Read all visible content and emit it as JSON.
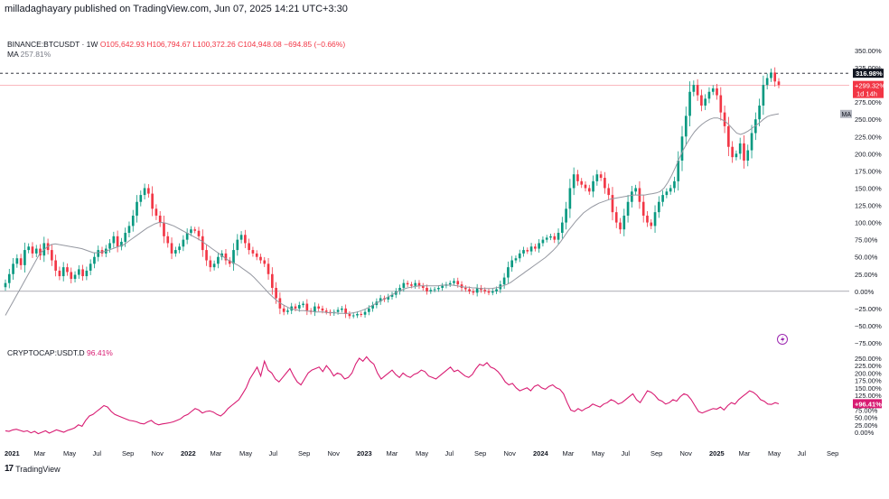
{
  "header": {
    "text": "milladaghayary published on TradingView.com, Jun 07, 2025 14:21 UTC+3:30"
  },
  "legend_main": {
    "symbol": "BINANCE:BTCUSDT · 1W",
    "o": "O105,642.93",
    "h": "H106,794.67",
    "l": "L100,372.26",
    "c": "C104,948.08",
    "chg": "−694.85 (−0.66%)",
    "ma_label": "MA",
    "ma_value": "257.81%"
  },
  "legend_sub": {
    "symbol": "CRYPTOCAP:USDT.D",
    "value": "96.41%"
  },
  "price_badges": {
    "high_line": "316.98%",
    "last": "+299.32%",
    "countdown": "1d 14h",
    "ma_tag": "MA",
    "sub_last": "+96.41%"
  },
  "footer": {
    "brand": "TradingView",
    "icon": "tv-logo-icon"
  },
  "colors": {
    "up": "#089981",
    "down": "#f23645",
    "ma": "#9598a1",
    "sub": "#d81b72",
    "zero": "#787b86"
  },
  "chart_data": [
    {
      "type": "candlestick",
      "title": "BINANCE:BTCUSDT · 1W",
      "scale": "percent",
      "ylim": [
        -75,
        350
      ],
      "yticks": [
        "350.00%",
        "325.00%",
        "300.00%",
        "275.00%",
        "250.00%",
        "225.00%",
        "200.00%",
        "175.00%",
        "150.00%",
        "125.00%",
        "100.00%",
        "75.00%",
        "50.00%",
        "25.00%",
        "0.00%",
        "−25.00%",
        "−50.00%",
        "−75.00%"
      ],
      "x_labels": [
        "2021",
        "Mar",
        "May",
        "Jul",
        "Sep",
        "Nov",
        "2022",
        "Mar",
        "May",
        "Jul",
        "Sep",
        "Nov",
        "2023",
        "Mar",
        "May",
        "Jul",
        "Sep",
        "Nov",
        "2024",
        "Mar",
        "May",
        "Jul",
        "Sep",
        "Nov",
        "2025",
        "Mar",
        "May",
        "Jul",
        "Sep"
      ],
      "reference_lines": [
        {
          "label": "high",
          "value": 316.98,
          "style": "dashed"
        },
        {
          "label": "last",
          "value": 299.32,
          "style": "solid"
        },
        {
          "label": "base",
          "value": 0,
          "style": "solid"
        }
      ],
      "closes": [
        12,
        25,
        40,
        48,
        38,
        60,
        65,
        55,
        62,
        52,
        70,
        60,
        45,
        30,
        22,
        35,
        28,
        18,
        24,
        32,
        22,
        30,
        40,
        50,
        60,
        55,
        62,
        70,
        80,
        65,
        72,
        85,
        95,
        110,
        130,
        140,
        150,
        142,
        120,
        110,
        100,
        80,
        70,
        55,
        60,
        65,
        75,
        85,
        90,
        88,
        80,
        60,
        45,
        35,
        40,
        50,
        55,
        45,
        40,
        60,
        75,
        82,
        70,
        60,
        55,
        50,
        45,
        40,
        25,
        5,
        -10,
        -25,
        -30,
        -28,
        -22,
        -25,
        -20,
        -18,
        -28,
        -30,
        -22,
        -25,
        -28,
        -30,
        -32,
        -30,
        -27,
        -25,
        -33,
        -36,
        -35,
        -33,
        -34,
        -30,
        -25,
        -20,
        -15,
        -10,
        -12,
        -8,
        -5,
        0,
        5,
        12,
        10,
        8,
        12,
        8,
        5,
        0,
        2,
        3,
        5,
        8,
        10,
        12,
        15,
        10,
        5,
        3,
        0,
        -2,
        5,
        2,
        0,
        -2,
        0,
        3,
        10,
        20,
        35,
        45,
        48,
        55,
        60,
        58,
        65,
        62,
        70,
        75,
        78,
        80,
        75,
        85,
        100,
        120,
        150,
        170,
        160,
        155,
        150,
        145,
        160,
        170,
        165,
        150,
        140,
        115,
        100,
        90,
        110,
        130,
        145,
        150,
        130,
        110,
        100,
        95,
        115,
        130,
        140,
        145,
        150,
        160,
        190,
        225,
        255,
        290,
        300,
        285,
        270,
        280,
        290,
        295,
        285,
        260,
        240,
        210,
        195,
        200,
        215,
        190,
        205,
        230,
        250,
        270,
        300,
        310,
        318,
        305,
        300
      ],
      "ma": {
        "label": "MA",
        "value": "257.81%",
        "points": [
          -35,
          -25,
          -15,
          -5,
          5,
          15,
          25,
          35,
          45,
          55,
          60,
          65,
          68,
          69,
          68,
          67,
          66,
          65,
          64,
          63,
          62,
          60,
          58,
          56,
          56,
          57,
          58,
          60,
          62,
          64,
          66,
          68,
          72,
          76,
          80,
          84,
          88,
          92,
          95,
          98,
          100,
          100,
          99,
          97,
          95,
          92,
          89,
          86,
          83,
          80,
          77,
          74,
          70,
          66,
          62,
          58,
          54,
          50,
          46,
          43,
          40,
          37,
          33,
          29,
          25,
          20,
          14,
          8,
          2,
          -4,
          -9,
          -14,
          -18,
          -21,
          -24,
          -26,
          -27,
          -28,
          -28,
          -29,
          -29,
          -30,
          -30,
          -30,
          -31,
          -31,
          -31,
          -32,
          -32,
          -32,
          -32,
          -31,
          -30,
          -28,
          -26,
          -23,
          -20,
          -17,
          -14,
          -11,
          -8,
          -5,
          -2,
          1,
          3,
          5,
          6,
          7,
          8,
          8,
          8,
          8,
          8,
          8,
          9,
          9,
          9,
          9,
          8,
          7,
          6,
          6,
          5,
          5,
          4,
          4,
          4,
          4,
          5,
          6,
          8,
          10,
          13,
          17,
          21,
          25,
          29,
          33,
          37,
          41,
          45,
          49,
          54,
          59,
          65,
          72,
          80,
          88,
          95,
          102,
          108,
          114,
          118,
          122,
          125,
          128,
          130,
          132,
          134,
          135,
          136,
          137,
          138,
          139,
          140,
          140,
          140,
          140,
          141,
          142,
          143,
          145,
          150,
          158,
          168,
          180,
          193,
          205,
          215,
          224,
          232,
          238,
          243,
          247,
          250,
          252,
          252,
          250,
          247,
          242,
          236,
          230,
          228,
          230,
          233,
          237,
          241,
          245,
          250,
          254,
          256,
          257,
          258
        ]
      }
    },
    {
      "type": "line",
      "title": "CRYPTOCAP:USDT.D",
      "scale": "percent",
      "ylim": [
        -10,
        260
      ],
      "yticks": [
        "250.00%",
        "225.00%",
        "200.00%",
        "175.00%",
        "150.00%",
        "125.00%",
        "100.00%",
        "75.00%",
        "50.00%",
        "25.00%",
        "0.00%"
      ],
      "series": [
        {
          "name": "CRYPTOCAP:USDT.D",
          "values": [
            5,
            3,
            8,
            10,
            6,
            2,
            5,
            -2,
            3,
            -5,
            0,
            5,
            -3,
            2,
            8,
            4,
            0,
            6,
            10,
            15,
            25,
            20,
            40,
            55,
            60,
            70,
            80,
            90,
            85,
            70,
            60,
            55,
            50,
            45,
            40,
            38,
            35,
            30,
            28,
            35,
            40,
            30,
            25,
            28,
            30,
            32,
            35,
            40,
            45,
            55,
            60,
            70,
            80,
            75,
            65,
            70,
            72,
            68,
            60,
            55,
            65,
            80,
            90,
            100,
            110,
            130,
            150,
            180,
            200,
            220,
            190,
            240,
            210,
            200,
            180,
            170,
            185,
            200,
            215,
            190,
            170,
            160,
            180,
            200,
            210,
            215,
            220,
            205,
            225,
            210,
            190,
            200,
            195,
            180,
            185,
            200,
            230,
            250,
            240,
            255,
            240,
            230,
            200,
            180,
            190,
            200,
            210,
            195,
            185,
            200,
            190,
            185,
            195,
            200,
            210,
            205,
            190,
            185,
            180,
            190,
            200,
            210,
            220,
            205,
            210,
            200,
            190,
            185,
            195,
            215,
            230,
            225,
            235,
            220,
            215,
            205,
            190,
            170,
            160,
            165,
            150,
            140,
            145,
            150,
            140,
            155,
            160,
            150,
            145,
            155,
            160,
            150,
            145,
            130,
            100,
            75,
            70,
            80,
            72,
            80,
            85,
            95,
            90,
            85,
            95,
            100,
            110,
            105,
            95,
            100,
            110,
            120,
            130,
            110,
            100,
            120,
            140,
            135,
            125,
            110,
            105,
            95,
            100,
            110,
            105,
            120,
            130,
            125,
            110,
            90,
            70,
            65,
            70,
            75,
            80,
            78,
            85,
            75,
            90,
            100,
            95,
            110,
            120,
            130,
            140,
            135,
            125,
            110,
            105,
            95,
            94,
            100,
            96
          ]
        }
      ],
      "last_value": "96.41%"
    }
  ]
}
